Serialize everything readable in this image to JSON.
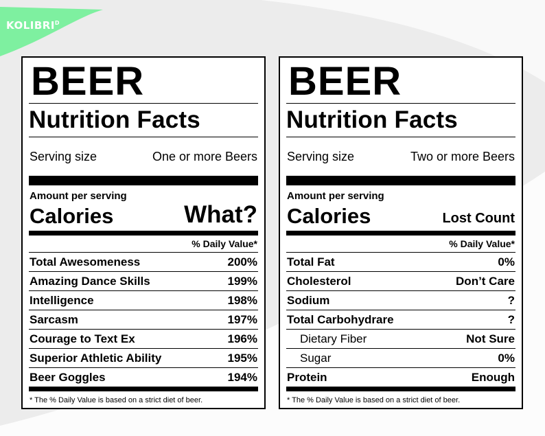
{
  "logo": {
    "text": "KOLIBRI",
    "mark": "D",
    "color": "#7ef0a0"
  },
  "labels": [
    {
      "title": "BEER",
      "subtitle": "Nutrition Facts",
      "serving_label": "Serving size",
      "serving_value": "One or more Beers",
      "amount_label": "Amount per serving",
      "calories_label": "Calories",
      "calories_value": "What?",
      "dv_header": "% Daily Value*",
      "rows": [
        {
          "name": "Total Awesomeness",
          "value": "200%"
        },
        {
          "name": "Amazing Dance Skills",
          "value": "199%"
        },
        {
          "name": "Intelligence",
          "value": "198%"
        },
        {
          "name": "Sarcasm",
          "value": "197%"
        },
        {
          "name": "Courage to Text Ex",
          "value": "196%"
        },
        {
          "name": "Superior Athletic Ability",
          "value": "195%"
        },
        {
          "name": "Beer Goggles",
          "value": "194%"
        }
      ],
      "footnote": "* The % Daily Value is based on a strict diet of beer."
    },
    {
      "title": "BEER",
      "subtitle": "Nutrition Facts",
      "serving_label": "Serving size",
      "serving_value": "Two or more Beers",
      "amount_label": "Amount per serving",
      "calories_label": "Calories",
      "calories_value": "Lost Count",
      "dv_header": "% Daily Value*",
      "rows": [
        {
          "name": "Total Fat",
          "value": "0%"
        },
        {
          "name": "Cholesterol",
          "value": "Don’t Care"
        },
        {
          "name": "Sodium",
          "value": "?"
        },
        {
          "name": "Total Carbohydrare",
          "value": "?"
        },
        {
          "name": "Dietary Fiber",
          "value": "Not Sure"
        },
        {
          "name": "Sugar",
          "value": "0%"
        },
        {
          "name": "Protein",
          "value": "Enough"
        }
      ],
      "footnote": "* The % Daily Value is based on a strict diet of beer."
    }
  ]
}
